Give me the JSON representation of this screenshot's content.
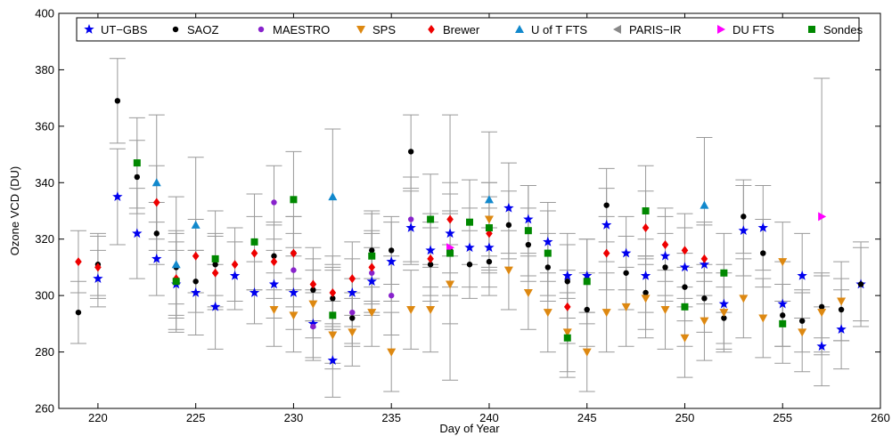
{
  "chart_data": {
    "type": "scatter",
    "title": "",
    "xlabel": "Day of Year",
    "ylabel": "Ozone VCD (DU)",
    "xlim": [
      218,
      260
    ],
    "ylim": [
      260,
      400
    ],
    "x_ticks": [
      220,
      225,
      230,
      235,
      240,
      245,
      250,
      255,
      260
    ],
    "y_ticks": [
      260,
      280,
      300,
      320,
      340,
      360,
      380,
      400
    ],
    "legend_position": "top",
    "grid": false,
    "series": [
      {
        "name": "UT−GBS",
        "color": "#0000ee",
        "marker": "star",
        "points": [
          [
            220,
            306,
            10
          ],
          [
            221,
            335,
            17
          ],
          [
            222,
            322,
            16
          ],
          [
            223,
            313,
            13
          ],
          [
            224,
            304,
            12
          ],
          [
            225,
            301,
            15
          ],
          [
            226,
            296,
            15
          ],
          [
            227,
            307,
            12
          ],
          [
            228,
            301,
            11
          ],
          [
            229,
            304,
            12
          ],
          [
            230,
            301,
            13
          ],
          [
            231,
            290,
            12
          ],
          [
            232,
            277,
            13
          ],
          [
            233,
            301,
            12
          ],
          [
            234,
            305,
            12
          ],
          [
            235,
            312,
            14
          ],
          [
            236,
            324,
            13
          ],
          [
            237,
            316,
            13
          ],
          [
            238,
            322,
            14
          ],
          [
            239,
            317,
            14
          ],
          [
            240,
            317,
            14
          ],
          [
            241,
            331,
            16
          ],
          [
            242,
            327,
            12
          ],
          [
            243,
            319,
            14
          ],
          [
            244,
            307,
            15
          ],
          [
            245,
            307,
            13
          ],
          [
            246,
            325,
            13
          ],
          [
            247,
            315,
            13
          ],
          [
            248,
            307,
            13
          ],
          [
            249,
            314,
            14
          ],
          [
            250,
            310,
            14
          ],
          [
            251,
            311,
            14
          ],
          [
            252,
            297,
            14
          ],
          [
            253,
            323,
            16
          ],
          [
            254,
            324,
            15
          ],
          [
            255,
            297,
            15
          ],
          [
            256,
            307,
            15
          ],
          [
            257,
            282,
            14
          ],
          [
            258,
            288,
            14
          ],
          [
            259,
            304,
            13
          ]
        ]
      },
      {
        "name": "SAOZ",
        "color": "#000000",
        "marker": "dot",
        "points": [
          [
            219,
            294,
            11
          ],
          [
            220,
            311,
            11
          ],
          [
            221,
            369,
            15
          ],
          [
            222,
            342,
            13
          ],
          [
            223,
            322,
            11
          ],
          [
            224,
            310,
            13
          ],
          [
            225,
            305,
            11
          ],
          [
            226,
            311,
            11
          ],
          [
            229,
            314,
            12
          ],
          [
            230,
            315,
            13
          ],
          [
            231,
            302,
            11
          ],
          [
            232,
            299,
            10
          ],
          [
            233,
            292,
            9
          ],
          [
            234,
            316,
            13
          ],
          [
            235,
            316,
            12
          ],
          [
            236,
            351,
            13
          ],
          [
            237,
            311,
            13
          ],
          [
            238,
            316,
            13
          ],
          [
            239,
            311,
            12
          ],
          [
            240,
            312,
            12
          ],
          [
            241,
            325,
            12
          ],
          [
            242,
            318,
            13
          ],
          [
            243,
            310,
            12
          ],
          [
            244,
            305,
            13
          ],
          [
            245,
            295,
            13
          ],
          [
            246,
            332,
            13
          ],
          [
            247,
            308,
            13
          ],
          [
            248,
            301,
            13
          ],
          [
            249,
            310,
            12
          ],
          [
            250,
            303,
            12
          ],
          [
            251,
            299,
            12
          ],
          [
            252,
            292,
            11
          ],
          [
            253,
            328,
            13
          ],
          [
            254,
            315,
            12
          ],
          [
            255,
            293,
            11
          ],
          [
            256,
            291,
            11
          ],
          [
            257,
            296,
            11
          ],
          [
            258,
            295,
            11
          ],
          [
            259,
            304,
            15
          ]
        ]
      },
      {
        "name": "MAESTRO",
        "color": "#8822cc",
        "marker": "dot",
        "points": [
          [
            229,
            333,
            13
          ],
          [
            230,
            309,
            13
          ],
          [
            231,
            289,
            12
          ],
          [
            233,
            294,
            12
          ],
          [
            234,
            308,
            14
          ],
          [
            235,
            300,
            14
          ],
          [
            236,
            327,
            15
          ]
        ]
      },
      {
        "name": "SPS",
        "color": "#dd8811",
        "marker": "triangle-down",
        "points": [
          [
            229,
            295,
            13
          ],
          [
            230,
            293,
            13
          ],
          [
            231,
            297,
            12
          ],
          [
            232,
            286,
            12
          ],
          [
            233,
            287,
            12
          ],
          [
            234,
            294,
            12
          ],
          [
            235,
            280,
            14
          ],
          [
            236,
            295,
            14
          ],
          [
            237,
            295,
            15
          ],
          [
            238,
            304,
            14
          ],
          [
            240,
            327,
            13
          ],
          [
            241,
            309,
            14
          ],
          [
            242,
            301,
            13
          ],
          [
            243,
            294,
            14
          ],
          [
            244,
            287,
            14
          ],
          [
            245,
            280,
            14
          ],
          [
            246,
            294,
            14
          ],
          [
            247,
            296,
            14
          ],
          [
            248,
            299,
            14
          ],
          [
            249,
            295,
            14
          ],
          [
            250,
            285,
            14
          ],
          [
            251,
            291,
            14
          ],
          [
            252,
            294,
            14
          ],
          [
            253,
            299,
            14
          ],
          [
            254,
            292,
            14
          ],
          [
            255,
            312,
            14
          ],
          [
            256,
            287,
            14
          ],
          [
            257,
            294,
            14
          ],
          [
            258,
            298,
            14
          ]
        ]
      },
      {
        "name": "Brewer",
        "color": "#ee0000",
        "marker": "diamond",
        "points": [
          [
            219,
            312,
            11
          ],
          [
            220,
            310,
            11
          ],
          [
            223,
            333,
            13
          ],
          [
            224,
            306,
            13
          ],
          [
            225,
            314,
            13
          ],
          [
            226,
            308,
            13
          ],
          [
            227,
            311,
            13
          ],
          [
            228,
            315,
            13
          ],
          [
            229,
            312,
            13
          ],
          [
            230,
            315,
            13
          ],
          [
            231,
            304,
            13
          ],
          [
            232,
            301,
            13
          ],
          [
            233,
            306,
            13
          ],
          [
            234,
            310,
            13
          ],
          [
            237,
            313,
            13
          ],
          [
            238,
            327,
            13
          ],
          [
            240,
            322,
            13
          ],
          [
            244,
            296,
            13
          ],
          [
            246,
            315,
            13
          ],
          [
            248,
            324,
            13
          ],
          [
            249,
            318,
            13
          ],
          [
            250,
            316,
            13
          ],
          [
            251,
            313,
            13
          ]
        ]
      },
      {
        "name": "U of T FTS",
        "color": "#1188cc",
        "marker": "triangle-up",
        "points": [
          [
            223,
            340,
            24
          ],
          [
            224,
            311,
            24
          ],
          [
            225,
            325,
            24
          ],
          [
            232,
            335,
            24
          ],
          [
            240,
            334,
            24
          ],
          [
            251,
            332,
            24
          ]
        ]
      },
      {
        "name": "PARIS−IR",
        "color": "#888888",
        "marker": "triangle-left",
        "points": []
      },
      {
        "name": "DU FTS",
        "color": "#ff00ff",
        "marker": "triangle-right",
        "points": [
          [
            238,
            317,
            47
          ],
          [
            257,
            328,
            49
          ]
        ]
      },
      {
        "name": "Sondes",
        "color": "#008800",
        "marker": "square",
        "points": [
          [
            222,
            347,
            16
          ],
          [
            224,
            305,
            17
          ],
          [
            226,
            313,
            17
          ],
          [
            228,
            319,
            17
          ],
          [
            230,
            334,
            17
          ],
          [
            232,
            293,
            17
          ],
          [
            234,
            314,
            16
          ],
          [
            237,
            327,
            16
          ],
          [
            238,
            315,
            15
          ],
          [
            239,
            326,
            15
          ],
          [
            240,
            324,
            16
          ],
          [
            242,
            323,
            16
          ],
          [
            243,
            315,
            15
          ],
          [
            244,
            285,
            14
          ],
          [
            245,
            305,
            15
          ],
          [
            248,
            330,
            16
          ],
          [
            250,
            296,
            14
          ],
          [
            252,
            308,
            14
          ],
          [
            255,
            290,
            14
          ]
        ]
      }
    ]
  }
}
